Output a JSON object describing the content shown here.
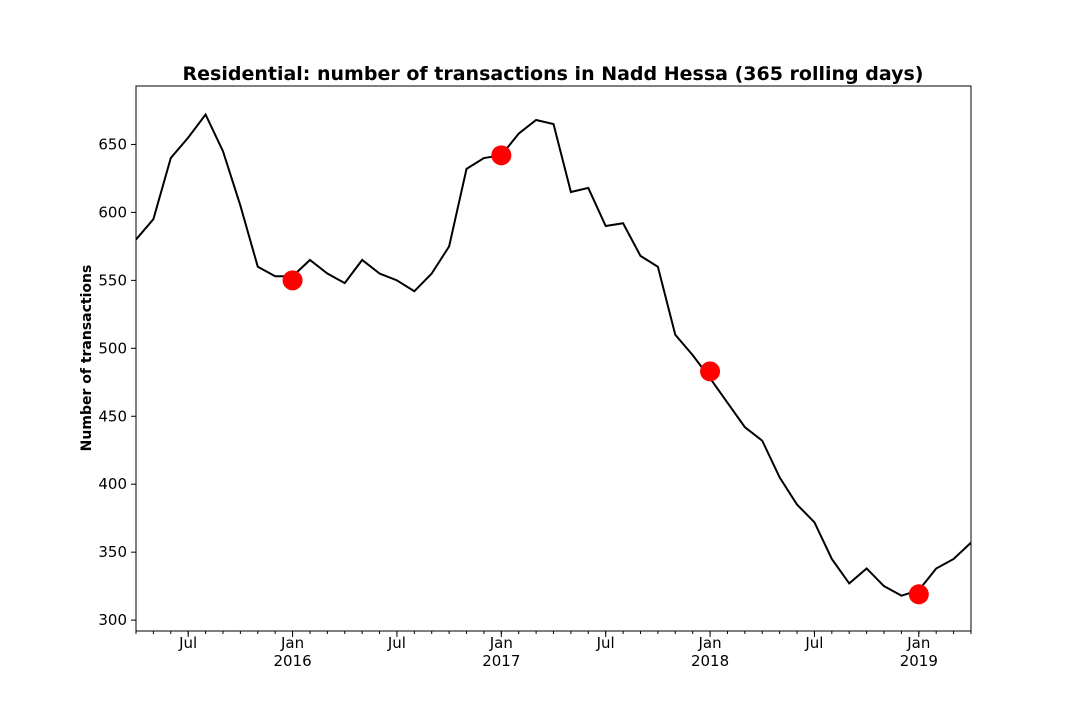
{
  "chart_data": {
    "type": "line",
    "title": "Residential: number of transactions in Nadd Hessa (365 rolling days)",
    "y_label": "Number of transactions",
    "x": [
      "2015-04",
      "2015-05",
      "2015-06",
      "2015-07",
      "2015-08",
      "2015-09",
      "2015-10",
      "2015-11",
      "2015-12",
      "2016-01",
      "2016-02",
      "2016-03",
      "2016-04",
      "2016-05",
      "2016-06",
      "2016-07",
      "2016-08",
      "2016-09",
      "2016-10",
      "2016-11",
      "2016-12",
      "2017-01",
      "2017-02",
      "2017-03",
      "2017-04",
      "2017-05",
      "2017-06",
      "2017-07",
      "2017-08",
      "2017-09",
      "2017-10",
      "2017-11",
      "2017-12",
      "2018-01",
      "2018-02",
      "2018-03",
      "2018-04",
      "2018-05",
      "2018-06",
      "2018-07",
      "2018-08",
      "2018-09",
      "2018-10",
      "2018-11",
      "2018-12",
      "2019-01",
      "2019-02",
      "2019-03",
      "2019-04"
    ],
    "series": [
      {
        "color": "#000000",
        "values": [
          580,
          595,
          640,
          655,
          672,
          645,
          605,
          560,
          553,
          553,
          565,
          555,
          548,
          565,
          555,
          550,
          542,
          555,
          575,
          632,
          640,
          642,
          658,
          668,
          665,
          615,
          618,
          590,
          592,
          568,
          560,
          510,
          495,
          478,
          460,
          442,
          432,
          405,
          385,
          372,
          345,
          327,
          338,
          325,
          318,
          322,
          338,
          345,
          357
        ]
      }
    ],
    "markers": {
      "color": "#ff0000",
      "x": [
        "2016-01",
        "2017-01",
        "2018-01",
        "2019-01"
      ],
      "values": [
        550,
        642,
        483,
        319
      ]
    },
    "xlim": [
      "2015-04",
      "2019-04"
    ],
    "xticks": [
      {
        "value": "2015-07",
        "label": "Jul"
      },
      {
        "value": "2016-01",
        "label": "Jan\n2016"
      },
      {
        "value": "2016-07",
        "label": "Jul"
      },
      {
        "value": "2017-01",
        "label": "Jan\n2017"
      },
      {
        "value": "2017-07",
        "label": "Jul"
      },
      {
        "value": "2018-01",
        "label": "Jan\n2018"
      },
      {
        "value": "2018-07",
        "label": "Jul"
      },
      {
        "value": "2019-01",
        "label": "Jan\n2019"
      }
    ],
    "ylim": [
      292,
      693
    ],
    "yticks": [
      300,
      350,
      400,
      450,
      500,
      550,
      600,
      650
    ]
  }
}
